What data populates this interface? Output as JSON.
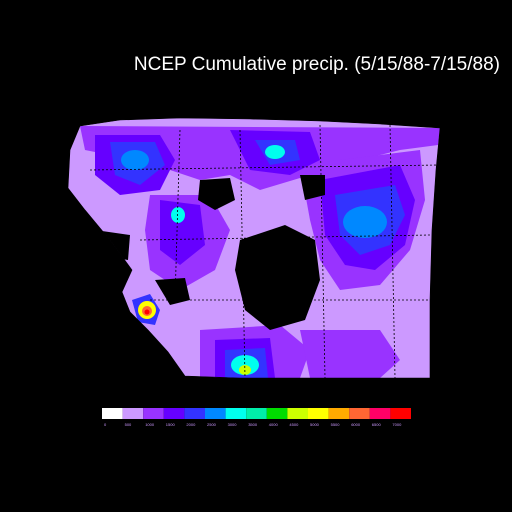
{
  "title": "NCEP Cumulative precip. (5/15/88-7/15/88)",
  "legend": {
    "colors": [
      "#ffffff",
      "#cc99ff",
      "#9933ff",
      "#6600ff",
      "#3333ff",
      "#0088ff",
      "#00ffee",
      "#00eeaa",
      "#00dd00",
      "#ccff00",
      "#ffff00",
      "#ffaa00",
      "#ff6633",
      "#ff0066",
      "#ff0000"
    ],
    "labels": [
      "0",
      "500",
      "1000",
      "1500",
      "2000",
      "2500",
      "3000",
      "3500",
      "4000",
      "4500",
      "5000",
      "5500",
      "6000",
      "6500",
      "7000"
    ]
  }
}
